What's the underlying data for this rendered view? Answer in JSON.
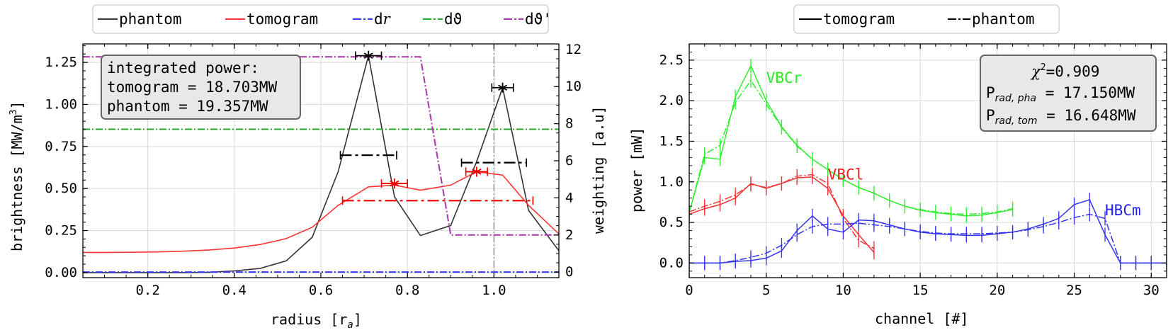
{
  "chart_data": [
    {
      "type": "line",
      "xlabel": "radius [r",
      "xlabel_sub": "a",
      "xlabel_end": "]",
      "ylabel": "brightness [MW/m",
      "ylabel_sup": "3",
      "ylabel_end": "]",
      "y2label": "weighting [a.u]",
      "xlim": [
        0.05,
        1.15
      ],
      "ylim": [
        -0.03,
        1.36
      ],
      "y2lim": [
        -0.3,
        12.3
      ],
      "xticks": [
        0.2,
        0.4,
        0.6,
        0.8,
        1.0
      ],
      "xtick_labels": [
        "0.2",
        "0.4",
        "0.6",
        "0.8",
        "1.0"
      ],
      "yticks": [
        0.0,
        0.25,
        0.5,
        0.75,
        1.0,
        1.25
      ],
      "ytick_labels": [
        "0.00",
        "0.25",
        "0.50",
        "0.75",
        "1.00",
        "1.25"
      ],
      "y2ticks": [
        0,
        2,
        4,
        6,
        8,
        10,
        12
      ],
      "y2tick_labels": [
        "0",
        "2",
        "4",
        "6",
        "8",
        "10",
        "12"
      ],
      "grid": true,
      "legend_position": "top, outside",
      "legend": [
        {
          "label": "phantom",
          "color": "#333333",
          "dash": "solid"
        },
        {
          "label": "tomogram",
          "color": "#ff3333",
          "dash": "solid"
        },
        {
          "label": "dr",
          "color": "#3333ff",
          "dash": "dashdot",
          "italic_part": "r"
        },
        {
          "label": "dϑ",
          "color": "#22aa22",
          "dash": "dashdot"
        },
        {
          "label": "dϑ'",
          "color": "#aa33aa",
          "dash": "dashdot"
        }
      ],
      "annotation": [
        "integrated power:",
        "tomogram = 18.703MW",
        "phantom = 19.357MW"
      ],
      "vline_x": 1.0,
      "series": [
        {
          "name": "phantom",
          "color": "#333333",
          "axis": "left",
          "x": [
            0.05,
            0.1,
            0.16,
            0.22,
            0.28,
            0.34,
            0.4,
            0.46,
            0.52,
            0.58,
            0.64,
            0.71,
            0.77,
            0.83,
            0.9,
            0.96,
            1.02,
            1.08,
            1.15
          ],
          "y": [
            0.0,
            0.0,
            0.0,
            0.0,
            0.0,
            0.002,
            0.01,
            0.025,
            0.07,
            0.21,
            0.6,
            1.29,
            0.45,
            0.22,
            0.28,
            0.66,
            1.1,
            0.37,
            0.13
          ]
        },
        {
          "name": "tomogram",
          "color": "#ff3333",
          "axis": "left",
          "x": [
            0.05,
            0.1,
            0.16,
            0.22,
            0.28,
            0.34,
            0.4,
            0.46,
            0.52,
            0.58,
            0.64,
            0.71,
            0.77,
            0.83,
            0.9,
            0.96,
            1.02,
            1.08,
            1.15
          ],
          "y": [
            0.12,
            0.12,
            0.121,
            0.123,
            0.127,
            0.134,
            0.146,
            0.167,
            0.202,
            0.27,
            0.4,
            0.51,
            0.52,
            0.49,
            0.52,
            0.6,
            0.58,
            0.4,
            0.23
          ]
        },
        {
          "name": "dr",
          "color": "#3333ff",
          "axis": "right",
          "x": [
            0.05,
            1.15
          ],
          "y": [
            0,
            0
          ]
        },
        {
          "name": "dϑ",
          "color": "#22aa22",
          "axis": "right",
          "x": [
            0.05,
            1.15
          ],
          "y": [
            7.7,
            7.7
          ]
        },
        {
          "name": "dϑ'",
          "color": "#aa33aa",
          "axis": "right",
          "x": [
            0.05,
            0.83,
            0.9,
            1.15
          ],
          "y": [
            11.6,
            11.6,
            2.0,
            2.0
          ]
        }
      ],
      "errorbars": [
        {
          "color": "#000000",
          "axis": "left",
          "x": 0.71,
          "y": 1.29,
          "xerr": 0.03,
          "marker": "star"
        },
        {
          "color": "#000000",
          "axis": "left",
          "x": 1.02,
          "y": 1.1,
          "xerr": 0.025,
          "marker": "star"
        },
        {
          "color": "#000000",
          "axis": "right",
          "x": 0.71,
          "y": 6.3,
          "xerr": 0.065,
          "marker": "none"
        },
        {
          "color": "#000000",
          "axis": "right",
          "x": 1.0,
          "y": 5.9,
          "xerr": 0.075,
          "marker": "none"
        },
        {
          "color": "#ee0000",
          "axis": "left",
          "x": 0.77,
          "y": 0.53,
          "xerr": 0.03,
          "marker": "star"
        },
        {
          "color": "#ee0000",
          "axis": "left",
          "x": 0.96,
          "y": 0.6,
          "xerr": 0.025,
          "marker": "star"
        },
        {
          "color": "#ee0000",
          "axis": "right",
          "x": 0.87,
          "y": 3.85,
          "xerr": 0.22,
          "marker": "none"
        }
      ]
    },
    {
      "type": "line",
      "xlabel": "channel [#]",
      "ylabel": "power [mW]",
      "xlim": [
        0,
        31
      ],
      "ylim": [
        -0.18,
        2.7
      ],
      "xticks": [
        0,
        5,
        10,
        15,
        20,
        25,
        30
      ],
      "xtick_labels": [
        "0",
        "5",
        "10",
        "15",
        "20",
        "25",
        "30"
      ],
      "yticks": [
        0.0,
        0.5,
        1.0,
        1.5,
        2.0,
        2.5
      ],
      "ytick_labels": [
        "0.0",
        "0.5",
        "1.0",
        "1.5",
        "2.0",
        "2.5"
      ],
      "grid": true,
      "legend_position": "top, outside",
      "legend": [
        {
          "label": "tomogram",
          "color": "#000000",
          "dash": "solid"
        },
        {
          "label": "phantom",
          "color": "#000000",
          "dash": "dashdot"
        }
      ],
      "annotation_chi": "χ",
      "annotation_chi_sup": "2",
      "annotation_chi_val": "=0.909",
      "annotation_p1_main": "P",
      "annotation_p1_sub": "rad, pha",
      "annotation_p1_val": " = 17.150MW",
      "annotation_p2_main": "P",
      "annotation_p2_sub": "rad, tom",
      "annotation_p2_val": " = 16.648MW",
      "camera_labels": [
        {
          "text": "VBCr",
          "color": "#22ee22",
          "x": 5.0,
          "y": 2.28
        },
        {
          "text": "VBCl",
          "color": "#ee2222",
          "x": 9.0,
          "y": 1.09
        },
        {
          "text": "HBCm",
          "color": "#2222ee",
          "x": 27.0,
          "y": 0.65
        }
      ],
      "series": [
        {
          "name": "VBCr tomogram",
          "color": "#33ee33",
          "dash": "solid",
          "x": [
            0,
            1,
            2,
            3,
            4,
            5,
            6,
            7,
            8,
            9,
            10,
            11,
            12,
            13,
            14,
            15,
            16,
            17,
            18,
            19,
            20,
            21
          ],
          "y": [
            0.62,
            1.3,
            1.28,
            2.05,
            2.43,
            2.0,
            1.68,
            1.45,
            1.28,
            1.15,
            1.03,
            0.93,
            0.86,
            0.77,
            0.7,
            0.65,
            0.62,
            0.6,
            0.58,
            0.59,
            0.62,
            0.66
          ]
        },
        {
          "name": "VBCr phantom",
          "color": "#33ee33",
          "dash": "dashdot",
          "x": [
            0,
            1,
            2,
            3,
            4,
            5,
            6,
            7,
            8,
            9,
            10,
            11,
            12,
            13,
            14,
            15,
            16,
            17,
            18,
            19,
            20,
            21
          ],
          "y": [
            0.62,
            1.34,
            1.45,
            1.98,
            2.25,
            1.96,
            1.67,
            1.44,
            1.28,
            1.15,
            1.03,
            0.93,
            0.86,
            0.77,
            0.7,
            0.66,
            0.63,
            0.61,
            0.6,
            0.61,
            0.63,
            0.67
          ]
        },
        {
          "name": "VBCl tomogram",
          "color": "#ee3333",
          "dash": "solid",
          "x": [
            0,
            1,
            2,
            3,
            4,
            5,
            6,
            7,
            8,
            9,
            10,
            11,
            12
          ],
          "y": [
            0.6,
            0.67,
            0.72,
            0.8,
            0.98,
            0.92,
            0.98,
            1.05,
            1.06,
            0.92,
            0.58,
            0.35,
            0.13
          ]
        },
        {
          "name": "VBCl phantom",
          "color": "#ee3333",
          "dash": "dashdot",
          "x": [
            0,
            1,
            2,
            3,
            4,
            5,
            6,
            7,
            8,
            9,
            10,
            11,
            12
          ],
          "y": [
            0.63,
            0.7,
            0.76,
            0.84,
            0.97,
            0.93,
            0.98,
            1.07,
            1.09,
            0.98,
            0.55,
            0.28,
            0.18
          ]
        },
        {
          "name": "HBCm tomogram",
          "color": "#3333ee",
          "dash": "solid",
          "x": [
            0,
            1,
            2,
            3,
            4,
            5,
            6,
            7,
            8,
            9,
            10,
            11,
            12,
            13,
            14,
            15,
            16,
            17,
            18,
            19,
            20,
            21,
            22,
            23,
            24,
            25,
            26,
            27,
            28,
            29,
            30,
            31
          ],
          "y": [
            0,
            0,
            0,
            0.02,
            0.03,
            0.06,
            0.15,
            0.4,
            0.58,
            0.42,
            0.38,
            0.53,
            0.52,
            0.47,
            0.42,
            0.38,
            0.36,
            0.35,
            0.34,
            0.34,
            0.36,
            0.38,
            0.42,
            0.48,
            0.55,
            0.72,
            0.78,
            0.35,
            0,
            0,
            0,
            0
          ]
        },
        {
          "name": "HBCm phantom",
          "color": "#3333ee",
          "dash": "dashdot",
          "x": [
            0,
            1,
            2,
            3,
            4,
            5,
            6,
            7,
            8,
            9,
            10,
            11,
            12,
            13,
            14,
            15,
            16,
            17,
            18,
            19,
            20,
            21,
            22,
            23,
            24,
            25,
            26,
            27,
            28,
            29,
            30,
            31
          ],
          "y": [
            0,
            0,
            0,
            0.03,
            0.07,
            0.12,
            0.22,
            0.35,
            0.45,
            0.48,
            0.48,
            0.49,
            0.47,
            0.45,
            0.42,
            0.39,
            0.37,
            0.36,
            0.36,
            0.36,
            0.37,
            0.38,
            0.41,
            0.45,
            0.5,
            0.56,
            0.6,
            0.55,
            0,
            0,
            0,
            0
          ]
        }
      ]
    }
  ]
}
